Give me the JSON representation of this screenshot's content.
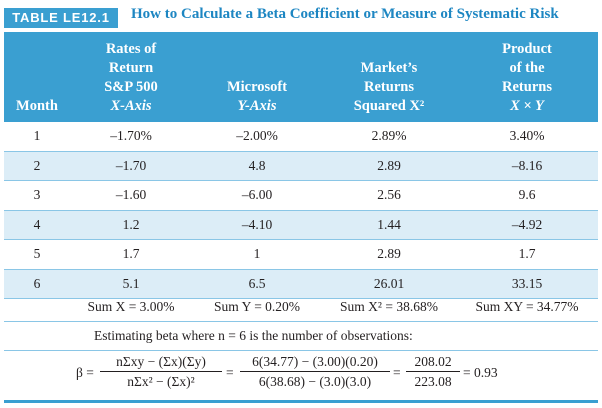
{
  "title": {
    "label": "TABLE LE12.1",
    "text": "How to Calculate a Beta Coefficient or Measure of Systematic Risk"
  },
  "headers": {
    "month": [
      "Month"
    ],
    "sp500": [
      "Rates of",
      "Return",
      "S&P 500",
      "X-Axis"
    ],
    "microsoft": [
      "Microsoft",
      "Y-Axis"
    ],
    "market_sq": [
      "Market’s",
      "Returns",
      "Squared X²"
    ],
    "product": [
      "Product",
      "of the",
      "Returns",
      "X × Y"
    ]
  },
  "rows": [
    {
      "month": "1",
      "x": "–1.70%",
      "y": "–2.00%",
      "x2": "2.89%",
      "xy": "3.40%"
    },
    {
      "month": "2",
      "x": "–1.70",
      "y": "4.8",
      "x2": "2.89",
      "xy": "–8.16"
    },
    {
      "month": "3",
      "x": "–1.60",
      "y": "–6.00",
      "x2": "2.56",
      "xy": "9.6"
    },
    {
      "month": "4",
      "x": "1.2",
      "y": "–4.10",
      "x2": "1.44",
      "xy": "–4.92"
    },
    {
      "month": "5",
      "x": "1.7",
      "y": "1",
      "x2": "2.89",
      "xy": "1.7"
    },
    {
      "month": "6",
      "x": "5.1",
      "y": "6.5",
      "x2": "26.01",
      "xy": "33.15"
    }
  ],
  "sums": {
    "x": "Sum X = 3.00%",
    "y": "Sum Y = 0.20%",
    "x2": "Sum X² = 38.68%",
    "xy": "Sum XY = 34.77%"
  },
  "estimating": "Estimating beta where n = 6 is the number of observations:",
  "formula": {
    "beta": "β =",
    "general_num": "nΣxy − (Σx)(Σy)",
    "general_den": "nΣx² − (Σx)²",
    "eq1": "=",
    "subst_num": "6(34.77) − (3.00)(0.20)",
    "subst_den": "6(38.68) − (3.0)(3.0)",
    "eq2": "=",
    "result_num": "208.02",
    "result_den": "223.08",
    "result": "= 0.93"
  },
  "colors": {
    "header_bg": "#3a9fd1",
    "title_text": "#1d86c2",
    "row_shade": "#dcedf7",
    "rule": "#8ac6e6"
  }
}
